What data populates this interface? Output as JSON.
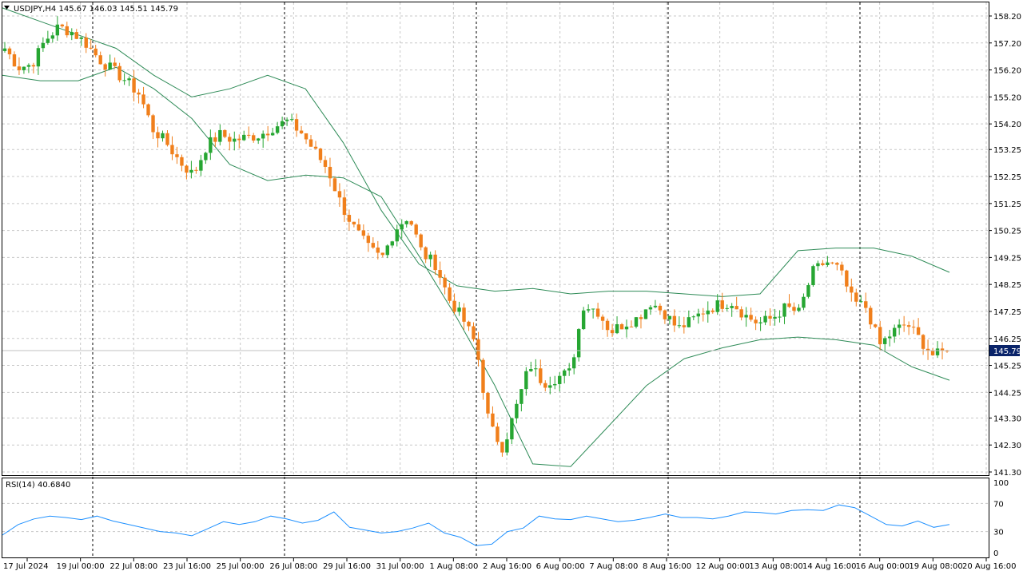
{
  "symbol_header": "USDJPY,H4  145.67 146.03 145.51 145.79",
  "current_price": "145.79",
  "rsi_label": "RSI(14) 40.6840",
  "price_axis": [
    "158.20",
    "157.20",
    "156.20",
    "155.20",
    "154.20",
    "153.25",
    "152.25",
    "151.25",
    "150.25",
    "149.25",
    "148.25",
    "147.25",
    "146.25",
    "145.25",
    "144.25",
    "143.30",
    "142.30",
    "141.30"
  ],
  "rsi_axis": [
    "100",
    "70",
    "30",
    "0"
  ],
  "time_axis": [
    "17 Jul 2024",
    "19 Jul 00:00",
    "22 Jul 08:00",
    "23 Jul 16:00",
    "25 Jul 00:00",
    "26 Jul 08:00",
    "29 Jul 16:00",
    "31 Jul 00:00",
    "1 Aug 08:00",
    "2 Aug 16:00",
    "6 Aug 00:00",
    "7 Aug 08:00",
    "8 Aug 16:00",
    "12 Aug 00:00",
    "13 Aug 08:00",
    "14 Aug 16:00",
    "16 Aug 00:00",
    "19 Aug 08:00",
    "20 Aug 16:00"
  ],
  "colors": {
    "bull": "#26a632",
    "bear": "#f07f1b",
    "band": "#2e8b57",
    "rsi": "#1e90ff",
    "grid": "#c8c8c8",
    "badge": "#0a246a"
  },
  "chart_data": {
    "type": "candlestick",
    "symbol": "USDJPY",
    "timeframe": "H4",
    "ylim": [
      141.3,
      158.2
    ],
    "close_path": [
      157.0,
      156.3,
      156.4,
      157.3,
      157.8,
      157.6,
      157.2,
      156.6,
      156.2,
      155.8,
      155.3,
      154.0,
      153.5,
      152.8,
      152.3,
      153.4,
      153.8,
      153.6,
      153.7,
      153.8,
      154.1,
      154.3,
      153.9,
      153.2,
      152.5,
      151.2,
      150.3,
      149.6,
      149.2,
      150.3,
      150.8,
      149.4,
      149.0,
      147.7,
      147.0,
      146.0,
      143.0,
      142.2,
      143.7,
      145.3,
      144.6,
      144.8,
      145.0,
      147.5,
      147.3,
      146.5,
      146.8,
      147.0,
      147.6,
      147.2,
      146.6,
      146.9,
      147.3,
      147.5,
      147.6,
      147.1,
      146.8,
      147.0,
      147.4,
      147.2,
      148.7,
      149.1,
      148.8,
      147.6,
      147.4,
      146.0,
      146.5,
      146.8,
      146.2,
      145.6,
      145.79
    ],
    "bb_upper_path": [
      158.5,
      158.0,
      157.5,
      157.0,
      156.0,
      155.2,
      155.5,
      156.0,
      155.5,
      153.5,
      151.0,
      149.0,
      148.2,
      148.0,
      148.1,
      147.9,
      148.0,
      148.0,
      147.9,
      147.8,
      147.9,
      149.5,
      149.6,
      149.6,
      149.3,
      148.7
    ],
    "bb_lower_path": [
      156.0,
      155.8,
      155.8,
      156.3,
      155.5,
      154.4,
      152.7,
      152.1,
      152.3,
      152.2,
      151.5,
      149.3,
      147.0,
      144.5,
      141.6,
      141.5,
      143.0,
      144.5,
      145.5,
      145.9,
      146.2,
      146.3,
      146.2,
      146.0,
      145.2,
      144.7
    ],
    "rsi": {
      "period": 14,
      "value": 40.684,
      "ylim": [
        0,
        100
      ],
      "levels": [
        30,
        70
      ],
      "path": [
        25,
        40,
        48,
        52,
        50,
        47,
        52,
        45,
        40,
        35,
        30,
        28,
        24,
        34,
        44,
        40,
        44,
        52,
        48,
        42,
        46,
        58,
        36,
        32,
        28,
        30,
        35,
        42,
        28,
        22,
        10,
        12,
        30,
        35,
        52,
        48,
        47,
        52,
        48,
        44,
        46,
        50,
        55,
        50,
        50,
        48,
        52,
        58,
        57,
        55,
        60,
        61,
        60,
        68,
        64,
        52,
        40,
        38,
        45,
        36,
        40
      ]
    }
  }
}
